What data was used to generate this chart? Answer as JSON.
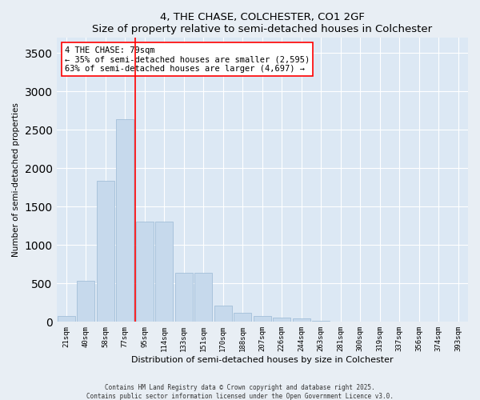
{
  "title": "4, THE CHASE, COLCHESTER, CO1 2GF",
  "subtitle": "Size of property relative to semi-detached houses in Colchester",
  "xlabel": "Distribution of semi-detached houses by size in Colchester",
  "ylabel": "Number of semi-detached properties",
  "categories": [
    "21sqm",
    "40sqm",
    "58sqm",
    "77sqm",
    "95sqm",
    "114sqm",
    "133sqm",
    "151sqm",
    "170sqm",
    "188sqm",
    "207sqm",
    "226sqm",
    "244sqm",
    "263sqm",
    "281sqm",
    "300sqm",
    "319sqm",
    "337sqm",
    "356sqm",
    "374sqm",
    "393sqm"
  ],
  "values": [
    75,
    530,
    1840,
    2640,
    1310,
    1310,
    640,
    640,
    215,
    115,
    80,
    55,
    40,
    15,
    5,
    0,
    0,
    0,
    0,
    0,
    0
  ],
  "bar_color": "#c6d9ec",
  "bar_edge_color": "#9ab8d4",
  "vline_x": 3.5,
  "vline_color": "red",
  "annotation_text": "4 THE CHASE: 79sqm\n← 35% of semi-detached houses are smaller (2,595)\n63% of semi-detached houses are larger (4,697) →",
  "ylim": [
    0,
    3700
  ],
  "background_color": "#e8eef4",
  "plot_bg_color": "#dce8f4",
  "grid_color": "#ffffff",
  "title_fontsize": 9.5,
  "subtitle_fontsize": 8.5,
  "axis_label_fontsize": 7.5,
  "tick_fontsize": 6.5,
  "annotation_fontsize": 7.5,
  "footer_fontsize": 5.5,
  "footer": "Contains HM Land Registry data © Crown copyright and database right 2025.\nContains public sector information licensed under the Open Government Licence v3.0."
}
